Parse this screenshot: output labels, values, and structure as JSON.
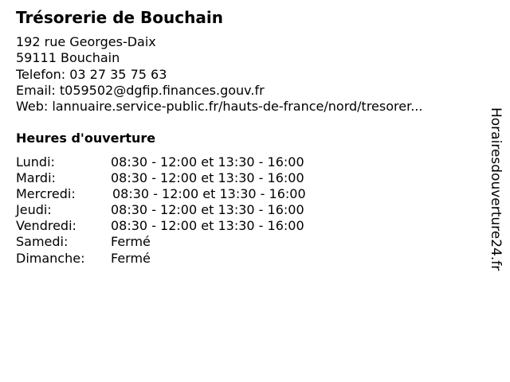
{
  "title": "Trésorerie de Bouchain",
  "address": {
    "street": "192 rue Georges-Daix",
    "city": "59111 Bouchain",
    "phone": "Telefon: 03 27 35 75 63",
    "email": "Email: t059502@dgfip.finances.gouv.fr",
    "web": "Web: lannuaire.service-public.fr/hauts-de-france/nord/tresorer..."
  },
  "hours_title": "Heures d'ouverture",
  "hours": [
    {
      "day": "Lundi:",
      "time": "08:30 - 12:00 et 13:30 - 16:00"
    },
    {
      "day": "Mardi:",
      "time": "08:30 - 12:00 et 13:30 - 16:00"
    },
    {
      "day": "Mercredi:",
      "time": "08:30 - 12:00 et 13:30 - 16:00"
    },
    {
      "day": "Jeudi:",
      "time": "08:30 - 12:00 et 13:30 - 16:00"
    },
    {
      "day": "Vendredi:",
      "time": "08:30 - 12:00 et 13:30 - 16:00"
    },
    {
      "day": "Samedi:",
      "time": "Fermé"
    },
    {
      "day": "Dimanche:",
      "time": "Fermé"
    }
  ],
  "watermark": "Horairesdouverture24.fr"
}
